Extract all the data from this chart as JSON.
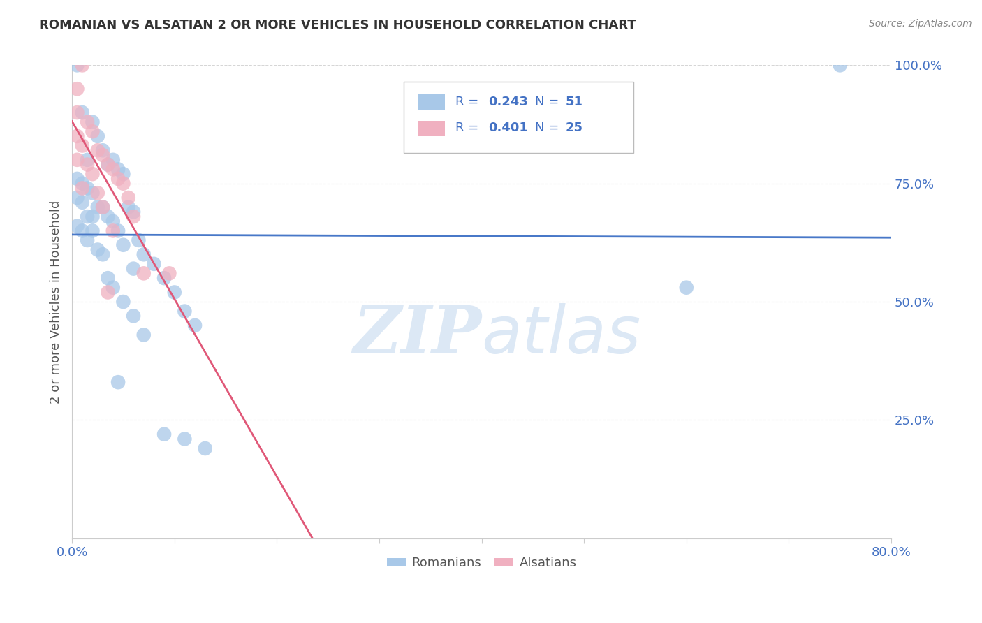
{
  "title": "ROMANIAN VS ALSATIAN 2 OR MORE VEHICLES IN HOUSEHOLD CORRELATION CHART",
  "source": "Source: ZipAtlas.com",
  "ylabel_label": "2 or more Vehicles in Household",
  "legend_blue_label": "Romanians",
  "legend_pink_label": "Alsatians",
  "r_blue": 0.243,
  "n_blue": 51,
  "r_pink": 0.401,
  "n_pink": 25,
  "blue_color": "#a8c8e8",
  "pink_color": "#f0b0c0",
  "blue_line_color": "#4878c8",
  "pink_line_color": "#e05878",
  "watermark_color": "#dce8f5",
  "xlim": [
    0,
    80
  ],
  "ylim": [
    0,
    100
  ],
  "figsize": [
    14.06,
    8.92
  ],
  "dpi": 100,
  "blue_dots": [
    [
      0.5,
      100.0
    ],
    [
      1.0,
      90.0
    ],
    [
      2.0,
      88.0
    ],
    [
      2.5,
      85.0
    ],
    [
      3.0,
      82.0
    ],
    [
      1.5,
      80.0
    ],
    [
      4.0,
      80.0
    ],
    [
      3.5,
      79.0
    ],
    [
      4.5,
      78.0
    ],
    [
      5.0,
      77.0
    ],
    [
      0.5,
      76.0
    ],
    [
      1.0,
      75.0
    ],
    [
      1.5,
      74.0
    ],
    [
      2.0,
      73.0
    ],
    [
      0.5,
      72.0
    ],
    [
      1.0,
      71.0
    ],
    [
      2.5,
      70.0
    ],
    [
      3.0,
      70.0
    ],
    [
      5.5,
      70.0
    ],
    [
      6.0,
      69.0
    ],
    [
      1.5,
      68.0
    ],
    [
      2.0,
      68.0
    ],
    [
      3.5,
      68.0
    ],
    [
      4.0,
      67.0
    ],
    [
      0.5,
      66.0
    ],
    [
      1.0,
      65.0
    ],
    [
      2.0,
      65.0
    ],
    [
      4.5,
      65.0
    ],
    [
      1.5,
      63.0
    ],
    [
      6.5,
      63.0
    ],
    [
      5.0,
      62.0
    ],
    [
      2.5,
      61.0
    ],
    [
      3.0,
      60.0
    ],
    [
      7.0,
      60.0
    ],
    [
      8.0,
      58.0
    ],
    [
      6.0,
      57.0
    ],
    [
      3.5,
      55.0
    ],
    [
      9.0,
      55.0
    ],
    [
      4.0,
      53.0
    ],
    [
      10.0,
      52.0
    ],
    [
      5.0,
      50.0
    ],
    [
      11.0,
      48.0
    ],
    [
      6.0,
      47.0
    ],
    [
      12.0,
      45.0
    ],
    [
      7.0,
      43.0
    ],
    [
      9.0,
      22.0
    ],
    [
      11.0,
      21.0
    ],
    [
      13.0,
      19.0
    ],
    [
      4.5,
      33.0
    ],
    [
      60.0,
      53.0
    ],
    [
      75.0,
      100.0
    ]
  ],
  "pink_dots": [
    [
      1.0,
      100.0
    ],
    [
      0.5,
      95.0
    ],
    [
      0.5,
      90.0
    ],
    [
      1.5,
      88.0
    ],
    [
      2.0,
      86.0
    ],
    [
      0.5,
      85.0
    ],
    [
      1.0,
      83.0
    ],
    [
      2.5,
      82.0
    ],
    [
      3.0,
      81.0
    ],
    [
      0.5,
      80.0
    ],
    [
      1.5,
      79.0
    ],
    [
      3.5,
      79.0
    ],
    [
      4.0,
      78.0
    ],
    [
      2.0,
      77.0
    ],
    [
      4.5,
      76.0
    ],
    [
      5.0,
      75.0
    ],
    [
      1.0,
      74.0
    ],
    [
      2.5,
      73.0
    ],
    [
      5.5,
      72.0
    ],
    [
      3.0,
      70.0
    ],
    [
      6.0,
      68.0
    ],
    [
      4.0,
      65.0
    ],
    [
      7.0,
      56.0
    ],
    [
      9.5,
      56.0
    ],
    [
      3.5,
      52.0
    ]
  ]
}
